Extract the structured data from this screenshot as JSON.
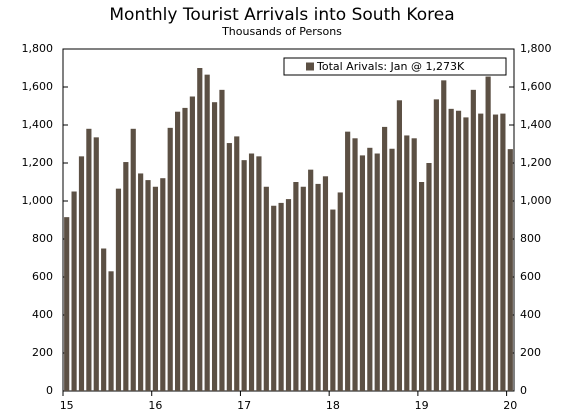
{
  "chart_data": {
    "type": "bar",
    "title": "Monthly Tourist Arrivals into South Korea",
    "subtitle": "Thousands of Persons",
    "categories": [
      "15",
      null,
      null,
      null,
      null,
      null,
      null,
      null,
      null,
      null,
      null,
      null,
      "16",
      null,
      null,
      null,
      null,
      null,
      null,
      null,
      null,
      null,
      null,
      null,
      "17",
      null,
      null,
      null,
      null,
      null,
      null,
      null,
      null,
      null,
      null,
      null,
      "18",
      null,
      null,
      null,
      null,
      null,
      null,
      null,
      null,
      null,
      null,
      null,
      "19",
      null,
      null,
      null,
      null,
      null,
      null,
      null,
      null,
      null,
      null,
      null,
      "20"
    ],
    "series": [
      {
        "name": "Total Arivals: Jan @ 1,273K",
        "color": "#5c5044",
        "values": [
          915,
          1050,
          1235,
          1380,
          1335,
          750,
          630,
          1065,
          1205,
          1380,
          1145,
          1110,
          1075,
          1120,
          1385,
          1470,
          1490,
          1550,
          1700,
          1665,
          1520,
          1585,
          1305,
          1340,
          1215,
          1250,
          1235,
          1075,
          975,
          990,
          1010,
          1100,
          1075,
          1165,
          1090,
          1130,
          955,
          1045,
          1365,
          1330,
          1240,
          1280,
          1250,
          1390,
          1275,
          1530,
          1345,
          1330,
          1100,
          1200,
          1535,
          1635,
          1485,
          1475,
          1440,
          1585,
          1460,
          1655,
          1455,
          1460,
          1273
        ]
      }
    ],
    "ylim": [
      0,
      1800
    ],
    "yticks": [
      0,
      200,
      400,
      600,
      800,
      {
        "value": 1000,
        "label": "1,000"
      },
      {
        "value": 1200,
        "label": "1,200"
      },
      {
        "value": 1400,
        "label": "1,400"
      },
      {
        "value": 1600,
        "label": "1,600"
      },
      {
        "value": 1800,
        "label": "1,800"
      }
    ],
    "right_axis": true,
    "legend": "top-right"
  }
}
